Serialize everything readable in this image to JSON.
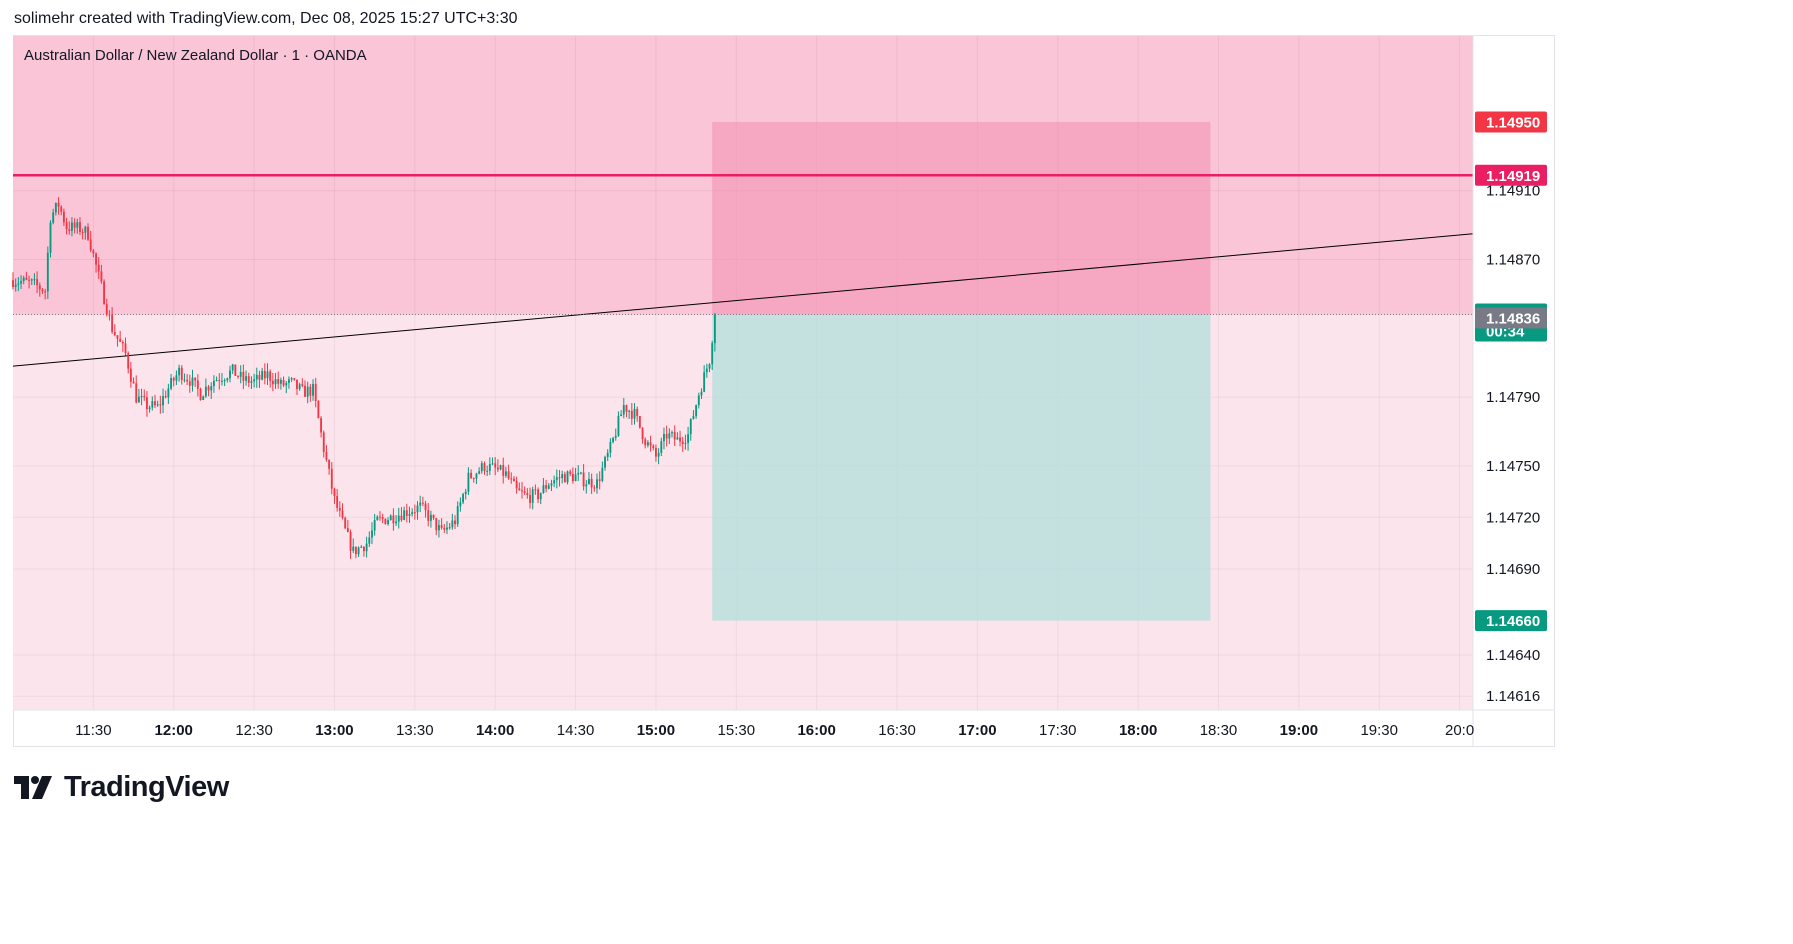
{
  "header": {
    "text": "solimehr created with TradingView.com, Dec 08, 2025 15:27 UTC+3:30"
  },
  "brand": {
    "logo_icon": "tradingview-logo-icon",
    "name": "TradingView"
  },
  "chart_data": {
    "type": "candlestick",
    "title": "Australian Dollar / New Zealand Dollar · 1 · OANDA",
    "x_axis": {
      "ticks": [
        "11:30",
        "12:00",
        "12:30",
        "13:00",
        "13:30",
        "14:00",
        "14:30",
        "15:00",
        "15:30",
        "16:00",
        "16:30",
        "17:00",
        "17:30",
        "18:00",
        "18:30",
        "19:00",
        "19:30",
        "20:0"
      ],
      "range_minutes": [
        660,
        1205
      ]
    },
    "y_axis": {
      "ticks": [
        "1.14910",
        "1.14870",
        "1.14790",
        "1.14750",
        "1.14720",
        "1.14690",
        "1.14640",
        "1.14616"
      ],
      "range": [
        1.14608,
        1.15
      ],
      "grid": true
    },
    "colors": {
      "up": "#089981",
      "down": "#f23645",
      "background_zone": "#fce4ec",
      "upper_zone": "#f8bbd0",
      "stop_zone": "#f48fb1",
      "target_zone": "#b2dfdb",
      "resistance_line": "#e91e63",
      "trendline": "#000000"
    },
    "upper_zone": {
      "top": 1.15,
      "bottom": 1.14838,
      "x_end_minutes": 1205
    },
    "position": {
      "side": "short",
      "entry": 1.14838,
      "stop": 1.1495,
      "target": 1.1466,
      "start_minutes": 921,
      "end_minutes": 1107
    },
    "resistance_level": 1.14919,
    "trendline": {
      "start": {
        "minutes": 660,
        "price": 1.14808
      },
      "end": {
        "minutes": 1205,
        "price": 1.14885
      }
    },
    "price_badges": [
      {
        "label": "1.14950",
        "price": 1.1495,
        "color": "#f23645"
      },
      {
        "label": "1.14919",
        "price": 1.14919,
        "color": "#e91e63"
      },
      {
        "label": "1.14838",
        "price": 1.14838,
        "color": "#089981",
        "countdown": "00:34"
      },
      {
        "label": "1.14836",
        "price": 1.14836,
        "color": "#787b86"
      },
      {
        "label": "1.14660",
        "price": 1.1466,
        "color": "#089981"
      }
    ],
    "candle_path": {
      "start_minutes": 660,
      "end_minutes": 922,
      "keypoints": [
        [
          660,
          1.14858
        ],
        [
          667,
          1.14856
        ],
        [
          672,
          1.14852
        ],
        [
          674,
          1.14895
        ],
        [
          677,
          1.14902
        ],
        [
          680,
          1.14889
        ],
        [
          685,
          1.14888
        ],
        [
          688,
          1.14885
        ],
        [
          692,
          1.1486
        ],
        [
          697,
          1.1483
        ],
        [
          702,
          1.14815
        ],
        [
          706,
          1.1479
        ],
        [
          710,
          1.14785
        ],
        [
          714,
          1.14784
        ],
        [
          718,
          1.14795
        ],
        [
          722,
          1.14805
        ],
        [
          726,
          1.148
        ],
        [
          730,
          1.14792
        ],
        [
          735,
          1.148
        ],
        [
          742,
          1.14805
        ],
        [
          746,
          1.148
        ],
        [
          750,
          1.14799
        ],
        [
          755,
          1.14803
        ],
        [
          760,
          1.14797
        ],
        [
          764,
          1.14798
        ],
        [
          768,
          1.14793
        ],
        [
          772,
          1.14794
        ],
        [
          776,
          1.1476
        ],
        [
          780,
          1.1473
        ],
        [
          784,
          1.14712
        ],
        [
          787,
          1.147
        ],
        [
          792,
          1.14705
        ],
        [
          796,
          1.14718
        ],
        [
          801,
          1.1472
        ],
        [
          806,
          1.14723
        ],
        [
          812,
          1.14726
        ],
        [
          816,
          1.14719
        ],
        [
          820,
          1.14711
        ],
        [
          825,
          1.14718
        ],
        [
          830,
          1.14743
        ],
        [
          836,
          1.1475
        ],
        [
          840,
          1.14748
        ],
        [
          844,
          1.14745
        ],
        [
          848,
          1.14735
        ],
        [
          852,
          1.14732
        ],
        [
          856,
          1.14733
        ],
        [
          860,
          1.1474
        ],
        [
          865,
          1.14744
        ],
        [
          870,
          1.14744
        ],
        [
          874,
          1.14741
        ],
        [
          878,
          1.1474
        ],
        [
          883,
          1.1476
        ],
        [
          888,
          1.14785
        ],
        [
          892,
          1.1478
        ],
        [
          896,
          1.14765
        ],
        [
          900,
          1.14755
        ],
        [
          904,
          1.14768
        ],
        [
          908,
          1.14765
        ],
        [
          912,
          1.14768
        ],
        [
          916,
          1.14792
        ],
        [
          920,
          1.14812
        ],
        [
          922,
          1.14838
        ]
      ]
    }
  }
}
